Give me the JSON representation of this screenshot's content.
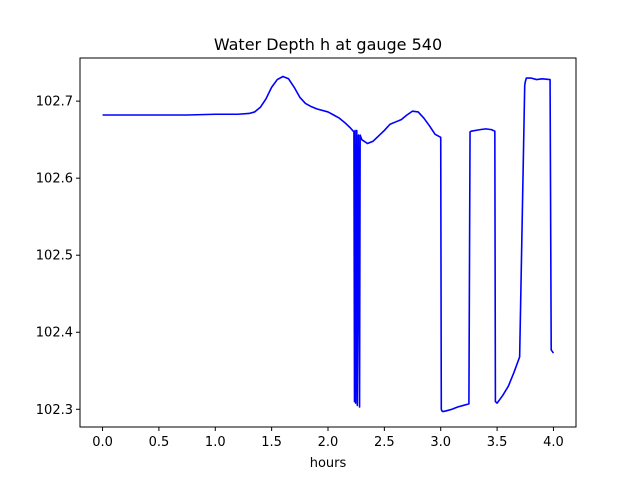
{
  "chart_data": {
    "type": "line",
    "title": "Water Depth h at gauge 540",
    "xlabel": "hours",
    "ylabel": "",
    "xlim": [
      -0.2,
      4.2
    ],
    "ylim": [
      102.277,
      102.756
    ],
    "xticks": [
      0.0,
      0.5,
      1.0,
      1.5,
      2.0,
      2.5,
      3.0,
      3.5,
      4.0
    ],
    "xtick_labels": [
      "0.0",
      "0.5",
      "1.0",
      "1.5",
      "2.0",
      "2.5",
      "3.0",
      "3.5",
      "4.0"
    ],
    "yticks": [
      102.3,
      102.4,
      102.5,
      102.6,
      102.7
    ],
    "ytick_labels": [
      "102.3",
      "102.4",
      "102.5",
      "102.6",
      "102.7"
    ],
    "grid": false,
    "series": [
      {
        "color": "#0000ff",
        "x": [
          0.0,
          0.25,
          0.5,
          0.75,
          1.0,
          1.1,
          1.2,
          1.3,
          1.35,
          1.4,
          1.45,
          1.5,
          1.55,
          1.6,
          1.65,
          1.7,
          1.75,
          1.8,
          1.85,
          1.9,
          2.0,
          2.05,
          2.1,
          2.15,
          2.2,
          2.23,
          2.235,
          2.24,
          2.245,
          2.255,
          2.26,
          2.27,
          2.28,
          2.285,
          2.3,
          2.35,
          2.4,
          2.45,
          2.5,
          2.55,
          2.6,
          2.65,
          2.7,
          2.75,
          2.8,
          2.85,
          2.9,
          2.95,
          3.0,
          3.005,
          3.01,
          3.02,
          3.05,
          3.1,
          3.15,
          3.2,
          3.25,
          3.26,
          3.27,
          3.35,
          3.4,
          3.45,
          3.48,
          3.485,
          3.5,
          3.52,
          3.55,
          3.6,
          3.65,
          3.7,
          3.745,
          3.75,
          3.76,
          3.8,
          3.85,
          3.9,
          3.97,
          3.98,
          4.0
        ],
        "y": [
          102.682,
          102.682,
          102.682,
          102.682,
          102.683,
          102.683,
          102.683,
          102.684,
          102.686,
          102.692,
          102.703,
          102.718,
          102.728,
          102.732,
          102.729,
          102.718,
          102.705,
          102.697,
          102.693,
          102.69,
          102.686,
          102.682,
          102.678,
          102.672,
          102.665,
          102.66,
          102.31,
          102.662,
          102.308,
          102.662,
          102.305,
          102.656,
          102.303,
          102.656,
          102.65,
          102.645,
          102.648,
          102.655,
          102.662,
          102.67,
          102.673,
          102.676,
          102.682,
          102.687,
          102.686,
          102.678,
          102.668,
          102.657,
          102.653,
          102.3,
          102.298,
          102.297,
          102.298,
          102.3,
          102.303,
          102.305,
          102.307,
          102.66,
          102.661,
          102.663,
          102.664,
          102.663,
          102.661,
          102.31,
          102.308,
          102.312,
          102.318,
          102.33,
          102.348,
          102.368,
          102.72,
          102.725,
          102.73,
          102.73,
          102.728,
          102.729,
          102.728,
          102.377,
          102.373
        ]
      }
    ]
  }
}
